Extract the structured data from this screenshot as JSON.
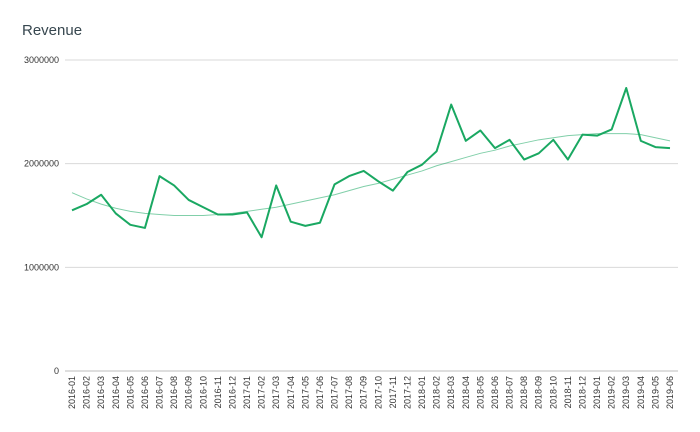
{
  "chart_data": {
    "type": "line",
    "title": "Revenue",
    "xlabel": "",
    "ylabel": "",
    "ylim": [
      0,
      3000000
    ],
    "yticks": [
      0,
      1000000,
      2000000,
      3000000
    ],
    "ytick_labels": [
      "0",
      "1000000",
      "2000000",
      "3000000"
    ],
    "grid": true,
    "legend": "none",
    "colors": {
      "series": "#1aa862",
      "trend": "#1aa862",
      "grid": "#d9d9d9",
      "axis": "#333333"
    },
    "categories": [
      "2016-01",
      "2016-02",
      "2016-03",
      "2016-04",
      "2016-05",
      "2016-06",
      "2016-07",
      "2016-08",
      "2016-09",
      "2016-10",
      "2016-11",
      "2016-12",
      "2017-01",
      "2017-02",
      "2017-03",
      "2017-04",
      "2017-05",
      "2017-06",
      "2017-07",
      "2017-08",
      "2017-09",
      "2017-10",
      "2017-11",
      "2017-12",
      "2018-01",
      "2018-02",
      "2018-03",
      "2018-04",
      "2018-05",
      "2018-06",
      "2018-07",
      "2018-08",
      "2018-09",
      "2018-10",
      "2018-11",
      "2018-12",
      "2019-01",
      "2019-02",
      "2019-03",
      "2019-04",
      "2019-05",
      "2019-06"
    ],
    "series": [
      {
        "values": [
          1550000,
          1610000,
          1700000,
          1520000,
          1410000,
          1380000,
          1880000,
          1790000,
          1650000,
          1580000,
          1510000,
          1510000,
          1530000,
          1290000,
          1790000,
          1440000,
          1400000,
          1430000,
          1800000,
          1880000,
          1930000,
          1830000,
          1740000,
          1920000,
          1990000,
          2120000,
          2570000,
          2220000,
          2320000,
          2150000,
          2230000,
          2040000,
          2100000,
          2230000,
          2040000,
          2280000,
          2270000,
          2330000,
          2730000,
          2220000,
          2160000,
          2150000
        ]
      }
    ],
    "trendline": {
      "type": "polynomial",
      "values": [
        1720000,
        1660000,
        1610000,
        1570000,
        1540000,
        1520000,
        1510000,
        1500000,
        1500000,
        1500000,
        1510000,
        1520000,
        1540000,
        1560000,
        1580000,
        1610000,
        1640000,
        1670000,
        1700000,
        1740000,
        1780000,
        1810000,
        1850000,
        1890000,
        1930000,
        1980000,
        2020000,
        2060000,
        2100000,
        2130000,
        2170000,
        2200000,
        2230000,
        2250000,
        2270000,
        2280000,
        2290000,
        2290000,
        2290000,
        2280000,
        2250000,
        2220000
      ]
    }
  }
}
